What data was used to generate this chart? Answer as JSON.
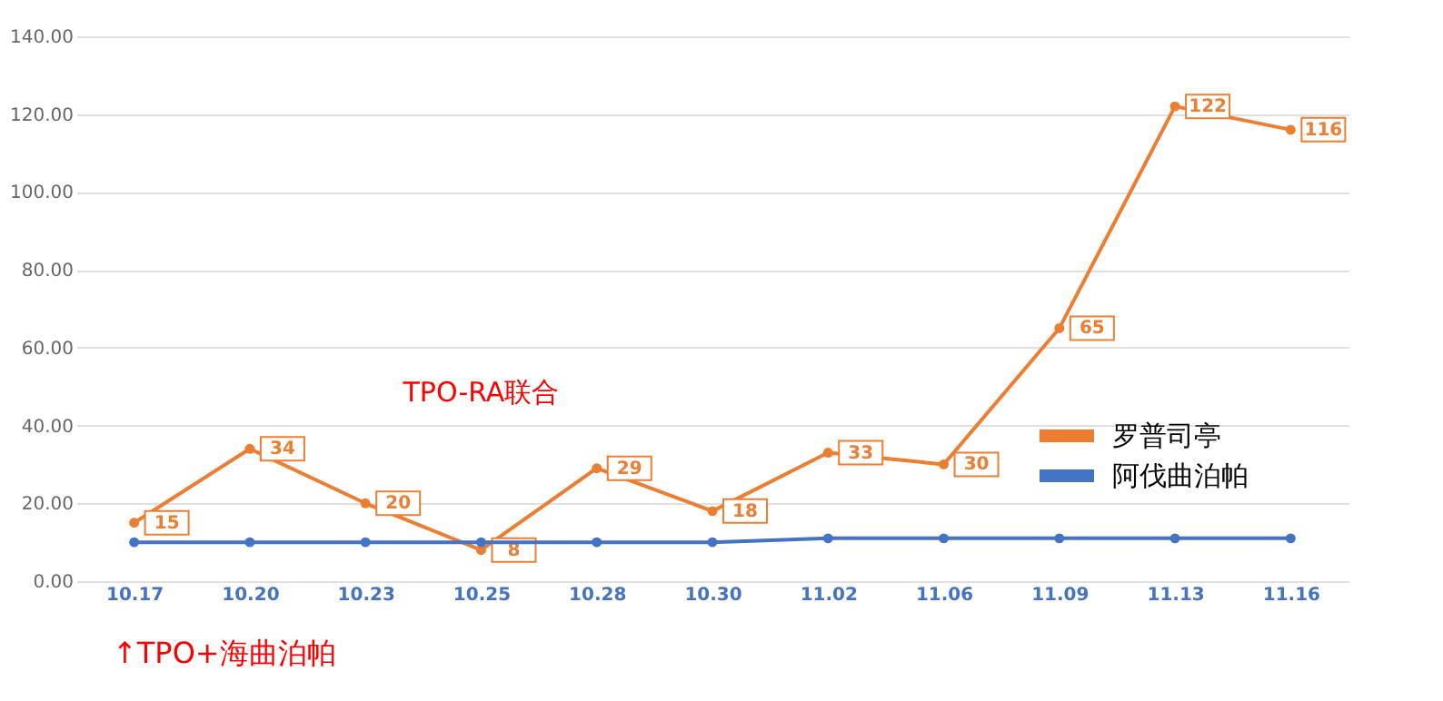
{
  "chart_data": {
    "type": "line",
    "categories": [
      "10.17",
      "10.20",
      "10.23",
      "10.25",
      "10.28",
      "10.30",
      "11.02",
      "11.06",
      "11.09",
      "11.13",
      "11.16"
    ],
    "series": [
      {
        "color": "#ed7d31",
        "values": [
          15,
          34,
          20,
          8,
          29,
          18,
          33,
          30,
          65,
          122,
          116
        ],
        "data_labels": true
      },
      {
        "color": "#4472c4",
        "values": [
          10,
          10,
          10,
          10,
          10,
          10,
          11,
          11,
          11,
          11,
          11
        ]
      }
    ],
    "ylim": [
      0,
      140
    ],
    "yticks": [
      {
        "value": 0,
        "label": "0.00"
      },
      {
        "value": 20,
        "label": "20.00"
      },
      {
        "value": 40,
        "label": "40.00"
      },
      {
        "value": 60,
        "label": "60.00"
      },
      {
        "value": 80,
        "label": "80.00"
      },
      {
        "value": 100,
        "label": "100.00"
      },
      {
        "value": 120,
        "label": "120.00"
      },
      {
        "value": 140,
        "label": "140.00"
      }
    ],
    "grid": "y",
    "marker": "circle",
    "line_style": "solid",
    "annotations": [
      "TPO-RA联合",
      "罗普司亭",
      "阿伐曲泊帕",
      "↑TPO+海曲泊帕"
    ]
  }
}
